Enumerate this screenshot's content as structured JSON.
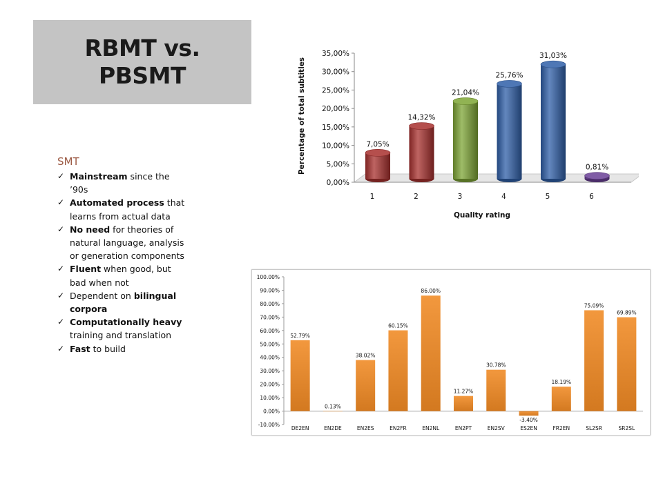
{
  "slide": {
    "title_line1": "RBMT vs.",
    "title_line2": "PBSMT"
  },
  "smt": {
    "heading": "SMT",
    "items": [
      {
        "bold": "Mainstream",
        "rest": " since the ’90s"
      },
      {
        "bold": "Automated process",
        "rest": " that learns from actual data"
      },
      {
        "bold": "No need",
        "rest": " for theories of natural language, analysis or generation components"
      },
      {
        "bold": "Fluent",
        "rest": " when good, but bad when not"
      },
      {
        "pre": "Dependent on ",
        "bold": "bilingual corpora",
        "rest": ""
      },
      {
        "bold": "Computationally heavy",
        "rest": " training and translation"
      },
      {
        "bold": "Fast",
        "rest": " to build"
      }
    ]
  },
  "chart_data": [
    {
      "type": "bar",
      "style": "3d-cylinder",
      "xlabel": "Quality rating",
      "ylabel": "Percentage of total subtitles",
      "categories": [
        "1",
        "2",
        "3",
        "4",
        "5",
        "6"
      ],
      "values": [
        7.05,
        14.32,
        21.04,
        25.76,
        31.03,
        0.81
      ],
      "data_labels": [
        "7,05%",
        "14,32%",
        "21,04%",
        "25,76%",
        "31,03%",
        "0,81%"
      ],
      "ylim": [
        0,
        35
      ],
      "yticks": [
        0,
        5,
        10,
        15,
        20,
        25,
        30,
        35
      ],
      "ytick_labels": [
        "0,00%",
        "5,00%",
        "10,00%",
        "15,00%",
        "20,00%",
        "25,00%",
        "30,00%",
        "35,00%"
      ],
      "bar_colors": [
        "#a8302e",
        "#a8302e",
        "#7ea535",
        "#2f5fa8",
        "#2f5fa8",
        "#6a3f96"
      ],
      "grid": false,
      "legend": "none"
    },
    {
      "type": "bar",
      "categories": [
        "DE2EN",
        "EN2DE",
        "EN2ES",
        "EN2FR",
        "EN2NL",
        "EN2PT",
        "EN2SV",
        "ES2EN",
        "FR2EN",
        "SL2SR",
        "SR2SL"
      ],
      "values": [
        52.79,
        0.13,
        38.02,
        60.15,
        86.0,
        11.27,
        30.78,
        -3.4,
        18.19,
        75.09,
        69.89
      ],
      "data_labels": [
        "52.79%",
        "0.13%",
        "38.02%",
        "60.15%",
        "86.00%",
        "11.27%",
        "30.78%",
        "-3.40%",
        "18.19%",
        "75.09%",
        "69.89%"
      ],
      "ylim": [
        -10,
        100
      ],
      "yticks": [
        -10,
        0,
        10,
        20,
        30,
        40,
        50,
        60,
        70,
        80,
        90,
        100
      ],
      "ytick_labels": [
        "-10.00%",
        "0.00%",
        "10.00%",
        "20.00%",
        "30.00%",
        "40.00%",
        "50.00%",
        "60.00%",
        "70.00%",
        "80.00%",
        "90.00%",
        "100.00%"
      ],
      "bar_color": "#f08a24",
      "grid": false,
      "legend": "none"
    }
  ]
}
